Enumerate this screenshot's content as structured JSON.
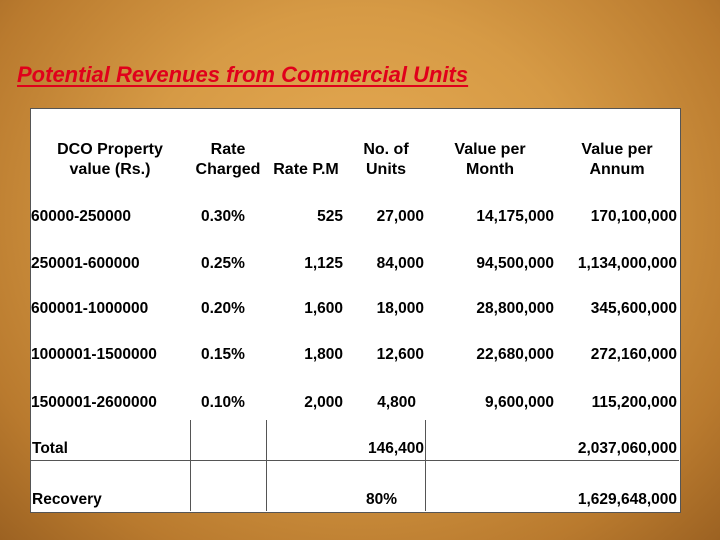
{
  "title": "Potential Revenues from Commercial Units",
  "headers": {
    "property": "DCO Property value  (Rs.)",
    "rate": "Rate Charged",
    "rate_pm": "Rate P.M",
    "units": "No. of Units",
    "month": "Value per Month",
    "annum": "Value per Annum"
  },
  "rows": [
    {
      "range": "60000-250000",
      "rate": "0.30%",
      "rate_pm": "525",
      "units": "27,000",
      "month": "14,175,000",
      "annum": "170,100,000"
    },
    {
      "range": "250001-600000",
      "rate": "0.25%",
      "rate_pm": "1,125",
      "units": "84,000",
      "month": "94,500,000",
      "annum": "1,134,000,000"
    },
    {
      "range": "600001-1000000",
      "rate": "0.20%",
      "rate_pm": "1,600",
      "units": "18,000",
      "month": "28,800,000",
      "annum": "345,600,000"
    },
    {
      "range": "1000001-1500000",
      "rate": "0.15%",
      "rate_pm": "1,800",
      "units": "12,600",
      "month": "22,680,000",
      "annum": "272,160,000"
    },
    {
      "range": "1500001-2600000",
      "rate": "0.10%",
      "rate_pm": "2,000",
      "units": "4,800",
      "month": "9,600,000",
      "annum": "115,200,000"
    }
  ],
  "total": {
    "label": "Total",
    "units": "146,400",
    "annum": "2,037,060,000"
  },
  "recovery": {
    "label": "Recovery",
    "units": "80%",
    "annum": "1,629,648,000"
  }
}
